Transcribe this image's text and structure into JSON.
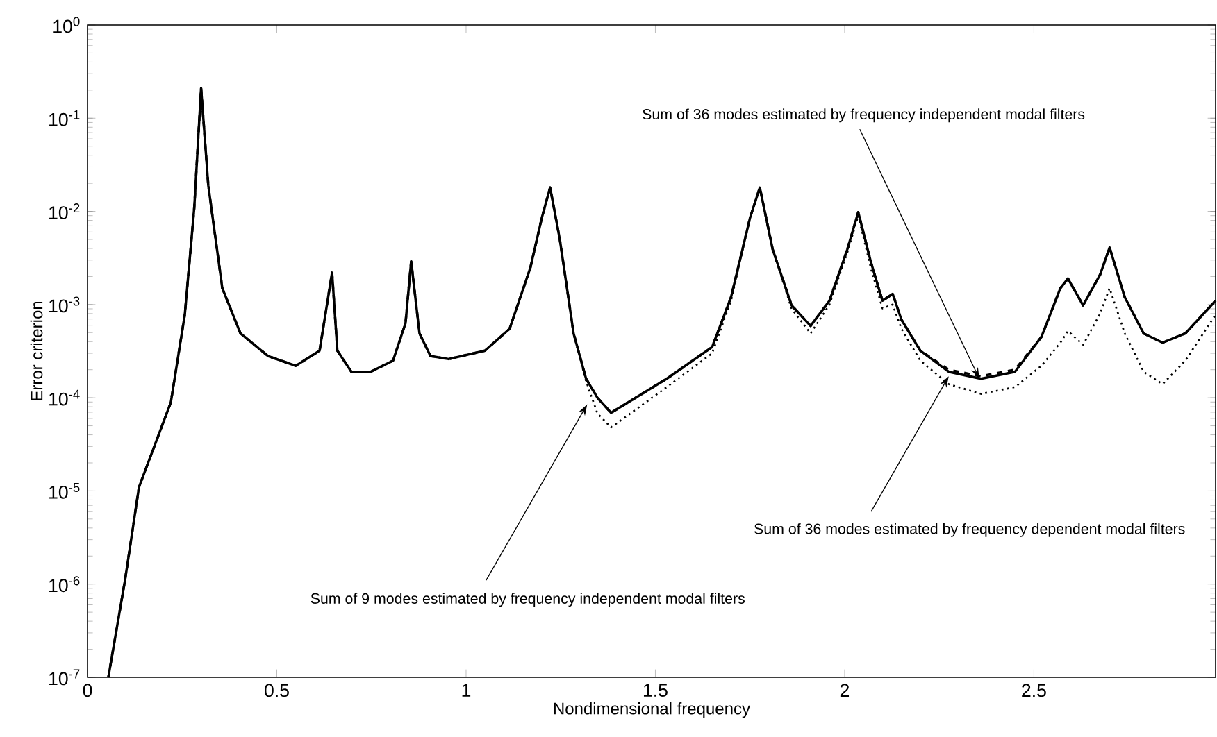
{
  "chart_data": {
    "type": "line",
    "xlabel": "Nondimensional frequency",
    "ylabel": "Error criterion",
    "log": "y",
    "xlim": [
      0,
      2.98
    ],
    "ylim": [
      1e-07,
      1
    ],
    "xticks": [
      0,
      0.5,
      1,
      1.5,
      2,
      2.5
    ],
    "yticks": [
      {
        "value": 1e-07,
        "label": "10$^{-7}$"
      },
      {
        "value": 1e-06,
        "label": "10$^{-6}$"
      },
      {
        "value": 1e-05,
        "label": "10$^{-5}$"
      },
      {
        "value": 0.0001,
        "label": "10$^{-4}$"
      },
      {
        "value": 0.001,
        "label": "10$^{-3}$"
      },
      {
        "value": 0.01,
        "label": "10$^{-2}$"
      },
      {
        "value": 0.1,
        "label": "10$^{-1}$"
      },
      {
        "value": 1,
        "label": "10$^{0}$"
      }
    ],
    "x": [
      0.055,
      0.099,
      0.136,
      0.22,
      0.257,
      0.282,
      0.3,
      0.319,
      0.356,
      0.404,
      0.477,
      0.55,
      0.613,
      0.646,
      0.66,
      0.697,
      0.748,
      0.807,
      0.84,
      0.855,
      0.877,
      0.906,
      0.954,
      1.05,
      1.115,
      1.17,
      1.2,
      1.222,
      1.248,
      1.284,
      1.317,
      1.347,
      1.383,
      1.53,
      1.65,
      1.7,
      1.75,
      1.776,
      1.81,
      1.86,
      1.91,
      1.96,
      2.007,
      2.036,
      2.07,
      2.1,
      2.127,
      2.15,
      2.2,
      2.275,
      2.36,
      2.45,
      2.52,
      2.57,
      2.59,
      2.63,
      2.675,
      2.7,
      2.74,
      2.79,
      2.84,
      2.9,
      2.98
    ],
    "series": [
      {
        "color": "#000000",
        "line_style": "dotted",
        "values": [
          1e-07,
          1.1e-06,
          1.1e-05,
          8.9e-05,
          0.00078,
          0.011,
          0.21,
          0.019,
          0.0015,
          0.00049,
          0.00028,
          0.00022,
          0.00032,
          0.0022,
          0.00032,
          0.00019,
          0.00019,
          0.00025,
          0.00063,
          0.0029,
          0.00049,
          0.00028,
          0.00026,
          0.00032,
          0.00055,
          0.0025,
          0.0085,
          0.018,
          0.0049,
          0.00049,
          0.00015,
          6.8e-05,
          4.8e-05,
          0.00013,
          0.0003,
          0.0011,
          0.0085,
          0.018,
          0.0039,
          0.0009,
          0.00049,
          0.001,
          0.0036,
          0.009,
          0.0024,
          0.00091,
          0.001,
          0.00055,
          0.00025,
          0.00014,
          0.00011,
          0.00013,
          0.00022,
          0.00039,
          0.00052,
          0.00037,
          0.0008,
          0.0015,
          0.00049,
          0.00019,
          0.00014,
          0.00025,
          0.00078
        ]
      },
      {
        "color": "#000000",
        "line_style": "dashed",
        "values": [
          1e-07,
          1.1e-06,
          1.1e-05,
          8.9e-05,
          0.00078,
          0.011,
          0.21,
          0.019,
          0.0015,
          0.00049,
          0.00028,
          0.00022,
          0.00032,
          0.0022,
          0.00032,
          0.00019,
          0.00019,
          0.00025,
          0.00063,
          0.0029,
          0.00049,
          0.00028,
          0.00026,
          0.00032,
          0.00055,
          0.0025,
          0.0085,
          0.018,
          0.0049,
          0.00049,
          0.00016,
          0.0001,
          6.9e-05,
          0.00016,
          0.00035,
          0.0012,
          0.0085,
          0.018,
          0.0039,
          0.00098,
          0.00059,
          0.0011,
          0.0039,
          0.0098,
          0.0028,
          0.0011,
          0.0013,
          0.00069,
          0.00032,
          0.0002,
          0.00017,
          0.0002,
          0.00045,
          0.0015,
          0.0019,
          0.00098,
          0.0021,
          0.0041,
          0.0012,
          0.00049,
          0.00039,
          0.00049,
          0.0011
        ]
      },
      {
        "color": "#000000",
        "line_style": "solid",
        "values": [
          1e-07,
          1.1e-06,
          1.1e-05,
          8.9e-05,
          0.00078,
          0.011,
          0.21,
          0.019,
          0.0015,
          0.00049,
          0.00028,
          0.00022,
          0.00032,
          0.0022,
          0.00032,
          0.00019,
          0.00019,
          0.00025,
          0.00063,
          0.0029,
          0.00049,
          0.00028,
          0.00026,
          0.00032,
          0.00055,
          0.0025,
          0.0085,
          0.018,
          0.0049,
          0.00049,
          0.00016,
          0.0001,
          6.9e-05,
          0.00016,
          0.00035,
          0.0012,
          0.0085,
          0.018,
          0.0039,
          0.00098,
          0.00059,
          0.0011,
          0.0039,
          0.0098,
          0.0028,
          0.0011,
          0.0013,
          0.00069,
          0.00032,
          0.00019,
          0.00016,
          0.00019,
          0.00045,
          0.0015,
          0.0019,
          0.00098,
          0.0021,
          0.0041,
          0.0012,
          0.00049,
          0.00039,
          0.00049,
          0.0011
        ]
      }
    ],
    "annotations": [
      {
        "text": "Sum of 36 modes estimated by frequency independent modal filters",
        "x": 2.356,
        "y": 0.00016
      },
      {
        "text": "Sum of 36 modes estimated by frequency dependent modal filters",
        "x": 2.275,
        "y": 0.00017
      },
      {
        "text": "Sum of 9 modes estimated by frequency independent modal filters",
        "x": 1.32,
        "y": 8.5e-05
      }
    ]
  }
}
